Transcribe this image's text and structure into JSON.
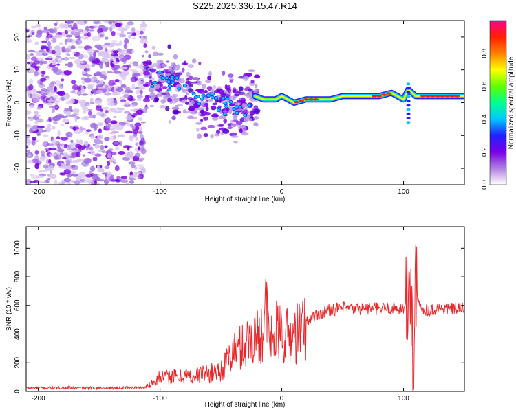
{
  "figure_title": "S225.2025.336.15.47.R14",
  "chart_data": [
    {
      "type": "heatmap",
      "name": "spectrogram",
      "title": "S225.2025.336.15.47.R14",
      "xlabel": "Height of straight line (km)",
      "ylabel": "Frequency (Hz)",
      "xlim": [
        -210,
        150
      ],
      "ylim": [
        -25,
        25
      ],
      "xticks": [
        -200,
        -100,
        0,
        100
      ],
      "yticks": [
        -20,
        -10,
        0,
        10,
        20
      ],
      "ridge": {
        "description": "dominant frequency ridge",
        "x": [
          -110,
          -100,
          -90,
          -80,
          -70,
          -60,
          -50,
          -40,
          -30,
          -22,
          -15,
          -10,
          -5,
          0,
          5,
          10,
          20,
          30,
          40,
          50,
          60,
          70,
          80,
          90,
          100,
          104,
          110,
          120,
          130,
          140,
          150
        ],
        "y": [
          6,
          7,
          5,
          4,
          1,
          0,
          -1,
          -1,
          -2,
          2,
          1,
          1,
          1,
          2,
          1,
          0,
          1,
          1,
          1,
          2,
          2,
          2,
          2,
          3,
          1,
          4,
          2,
          2,
          2,
          2,
          2
        ]
      },
      "noise_region_x": [
        -210,
        -113
      ],
      "colorbar": {
        "label": "Normalized spectral amplitude",
        "range": [
          0.0,
          1.0
        ],
        "ticks": [
          "0.0",
          "0.2",
          "0.4",
          "0.6",
          "0.8"
        ],
        "colors": [
          "#ffffff",
          "#b080e0",
          "#7a00e6",
          "#2020ff",
          "#00c8ff",
          "#00ff90",
          "#60ff00",
          "#ffff00",
          "#ff8000",
          "#ff2000",
          "#ff0090"
        ]
      }
    },
    {
      "type": "line",
      "name": "snr",
      "xlabel": "Height of straight line (km)",
      "ylabel": "SNR (10 * v/v)",
      "xlim": [
        -210,
        150
      ],
      "ylim": [
        0,
        1150
      ],
      "xticks": [
        -200,
        -100,
        0,
        100
      ],
      "yticks": [
        0,
        200,
        400,
        600,
        800,
        1000
      ],
      "series": [
        {
          "name": "SNR",
          "color": "#e8292c",
          "x": [
            -210,
            -190,
            -170,
            -150,
            -130,
            -112,
            -105,
            -100,
            -95,
            -90,
            -85,
            -80,
            -75,
            -70,
            -65,
            -60,
            -55,
            -50,
            -45,
            -40,
            -35,
            -30,
            -25,
            -20,
            -15,
            -13,
            -10,
            -5,
            0,
            5,
            10,
            15,
            20,
            25,
            30,
            40,
            50,
            60,
            70,
            80,
            90,
            100,
            104,
            106,
            108,
            110,
            115,
            120,
            130,
            140,
            150
          ],
          "y": [
            25,
            25,
            25,
            25,
            25,
            28,
            70,
            100,
            95,
            110,
            90,
            120,
            100,
            110,
            130,
            120,
            140,
            150,
            200,
            280,
            300,
            320,
            400,
            380,
            450,
            560,
            330,
            420,
            400,
            380,
            390,
            420,
            480,
            520,
            540,
            570,
            580,
            575,
            580,
            575,
            580,
            580,
            620,
            750,
            200,
            650,
            580,
            570,
            580,
            575,
            580
          ]
        }
      ]
    }
  ]
}
